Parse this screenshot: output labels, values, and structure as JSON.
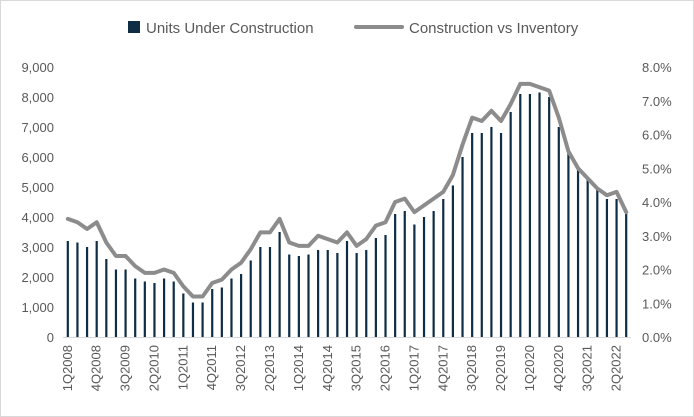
{
  "chart_data": {
    "type": "bar",
    "title": "",
    "xlabel": "",
    "ylabel": "",
    "y2label": "",
    "ylim": [
      0,
      9000
    ],
    "y2lim": [
      0,
      0.08
    ],
    "grid": false,
    "legend_position": "top",
    "colors": {
      "bars": "#0f2d45",
      "line": "#8c8c8c",
      "axis": "#d9d9d9",
      "text": "#595959"
    },
    "yticks": [
      "0",
      "1,000",
      "2,000",
      "3,000",
      "4,000",
      "5,000",
      "6,000",
      "7,000",
      "8,000",
      "9,000"
    ],
    "y2ticks": [
      "0.0%",
      "1.0%",
      "2.0%",
      "3.0%",
      "4.0%",
      "5.0%",
      "6.0%",
      "7.0%",
      "8.0%"
    ],
    "categories": [
      "1Q2008",
      "2Q2008",
      "3Q2008",
      "4Q2008",
      "1Q2009",
      "2Q2009",
      "3Q2009",
      "4Q2009",
      "1Q2010",
      "2Q2010",
      "3Q2010",
      "4Q2010",
      "1Q2011",
      "2Q2011",
      "3Q2011",
      "4Q2011",
      "1Q2012",
      "2Q2012",
      "3Q2012",
      "4Q2012",
      "1Q2013",
      "2Q2013",
      "3Q2013",
      "4Q2013",
      "1Q2014",
      "2Q2014",
      "3Q2014",
      "4Q2014",
      "1Q2015",
      "2Q2015",
      "3Q2015",
      "4Q2015",
      "1Q2016",
      "2Q2016",
      "3Q2016",
      "4Q2016",
      "1Q2017",
      "2Q2017",
      "3Q2017",
      "4Q2017",
      "1Q2018",
      "2Q2018",
      "3Q2018",
      "4Q2018",
      "1Q2019",
      "2Q2019",
      "3Q2019",
      "4Q2019",
      "1Q2020",
      "2Q2020",
      "3Q2020",
      "4Q2020",
      "1Q2021",
      "2Q2021",
      "3Q2021",
      "4Q2021",
      "1Q2022",
      "2Q2022",
      "3Q2022"
    ],
    "visible_tick_labels": [
      "1Q2008",
      "4Q2008",
      "3Q2009",
      "2Q2010",
      "1Q2011",
      "4Q2011",
      "3Q2012",
      "2Q2013",
      "1Q2014",
      "4Q2014",
      "3Q2015",
      "2Q2016",
      "1Q2017",
      "4Q2017",
      "3Q2018",
      "2Q2019",
      "1Q2020",
      "4Q2020",
      "3Q2021",
      "2Q2022"
    ],
    "series": [
      {
        "name": "Units Under Construction",
        "type": "bar",
        "axis": "left",
        "values": [
          3200,
          3150,
          3000,
          3200,
          2600,
          2250,
          2250,
          1950,
          1850,
          1800,
          1950,
          1850,
          1450,
          1150,
          1150,
          1600,
          1650,
          1950,
          2100,
          2550,
          3000,
          3000,
          3500,
          2750,
          2700,
          2750,
          2900,
          2900,
          2800,
          3200,
          2800,
          2900,
          3300,
          3400,
          4100,
          4200,
          3750,
          4000,
          4200,
          4600,
          5050,
          6000,
          6800,
          6800,
          7000,
          6800,
          7500,
          8100,
          8100,
          8150,
          8000,
          7000,
          6150,
          5600,
          5300,
          4900,
          4600,
          4600,
          4100
        ]
      },
      {
        "name": "Construction vs Inventory",
        "type": "line",
        "axis": "right",
        "values": [
          0.035,
          0.034,
          0.032,
          0.034,
          0.028,
          0.024,
          0.024,
          0.021,
          0.019,
          0.019,
          0.02,
          0.019,
          0.015,
          0.012,
          0.012,
          0.016,
          0.017,
          0.02,
          0.022,
          0.026,
          0.031,
          0.031,
          0.035,
          0.028,
          0.027,
          0.027,
          0.03,
          0.029,
          0.028,
          0.031,
          0.027,
          0.029,
          0.033,
          0.034,
          0.04,
          0.041,
          0.037,
          0.039,
          0.041,
          0.043,
          0.048,
          0.057,
          0.065,
          0.064,
          0.067,
          0.064,
          0.069,
          0.075,
          0.075,
          0.074,
          0.073,
          0.065,
          0.055,
          0.05,
          0.047,
          0.044,
          0.042,
          0.043,
          0.037
        ]
      }
    ]
  }
}
